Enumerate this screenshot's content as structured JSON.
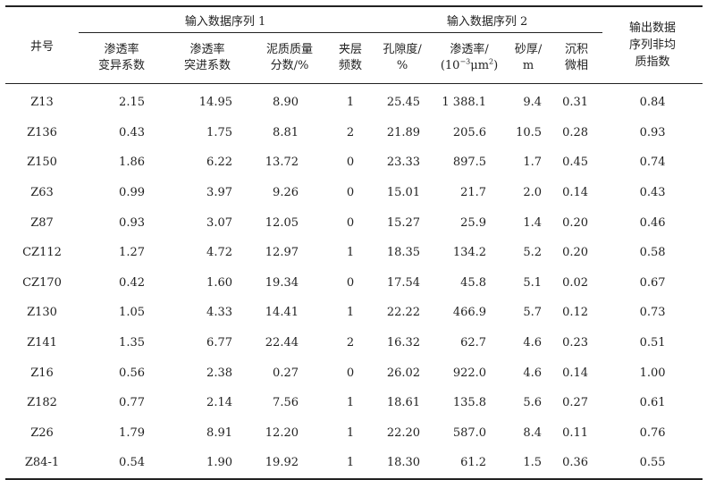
{
  "header": {
    "well_label": "井号",
    "group1_label": "输入数据序列 1",
    "group2_label": "输入数据序列 2",
    "output_label_line1": "输出数据",
    "output_label_line2": "序列非均",
    "output_label_line3": "质指数",
    "columns": [
      {
        "line1": "渗透率",
        "line2": "变异系数"
      },
      {
        "line1": "渗透率",
        "line2": "突进系数"
      },
      {
        "line1": "泥质质量",
        "line2": "分数/%"
      },
      {
        "line1": "夹层",
        "line2": "频数"
      },
      {
        "line1": "孔隙度/",
        "line2": "%"
      },
      {
        "line1": "渗透率/",
        "line2_pre": "(10",
        "line2_sup": "−3",
        "line2_mid": "μm",
        "line2_sup2": "2",
        "line2_post": ")"
      },
      {
        "line1": "砂厚/",
        "line2": "m"
      },
      {
        "line1": "沉积",
        "line2": "微相"
      }
    ]
  },
  "rows": [
    [
      "Z13",
      "2.15",
      "14.95",
      "8.90",
      "1",
      "25.45",
      "1 388.1",
      "9.4",
      "0.31",
      "0.84"
    ],
    [
      "Z136",
      "0.43",
      "1.75",
      "8.81",
      "2",
      "21.89",
      "205.6",
      "10.5",
      "0.28",
      "0.93"
    ],
    [
      "Z150",
      "1.86",
      "6.22",
      "13.72",
      "0",
      "23.33",
      "897.5",
      "1.7",
      "0.45",
      "0.74"
    ],
    [
      "Z63",
      "0.99",
      "3.97",
      "9.26",
      "0",
      "15.01",
      "21.7",
      "2.0",
      "0.14",
      "0.43"
    ],
    [
      "Z87",
      "0.93",
      "3.07",
      "12.05",
      "0",
      "15.27",
      "25.9",
      "1.4",
      "0.20",
      "0.46"
    ],
    [
      "CZ112",
      "1.27",
      "4.72",
      "12.97",
      "1",
      "18.35",
      "134.2",
      "5.2",
      "0.20",
      "0.58"
    ],
    [
      "CZ170",
      "0.42",
      "1.60",
      "19.34",
      "0",
      "17.54",
      "45.8",
      "5.1",
      "0.02",
      "0.67"
    ],
    [
      "Z130",
      "1.05",
      "4.33",
      "14.41",
      "1",
      "22.22",
      "466.9",
      "5.7",
      "0.12",
      "0.73"
    ],
    [
      "Z141",
      "1.35",
      "6.77",
      "22.44",
      "2",
      "16.32",
      "62.7",
      "4.6",
      "0.23",
      "0.51"
    ],
    [
      "Z16",
      "0.56",
      "2.38",
      "0.27",
      "0",
      "26.02",
      "922.0",
      "4.6",
      "0.14",
      "1.00"
    ],
    [
      "Z182",
      "0.77",
      "2.14",
      "7.56",
      "1",
      "18.61",
      "135.8",
      "5.6",
      "0.27",
      "0.61"
    ],
    [
      "Z26",
      "1.79",
      "8.91",
      "12.20",
      "1",
      "22.20",
      "587.0",
      "8.4",
      "0.11",
      "0.76"
    ],
    [
      "Z84-1",
      "0.54",
      "1.90",
      "19.92",
      "1",
      "18.30",
      "61.2",
      "1.5",
      "0.36",
      "0.55"
    ]
  ]
}
